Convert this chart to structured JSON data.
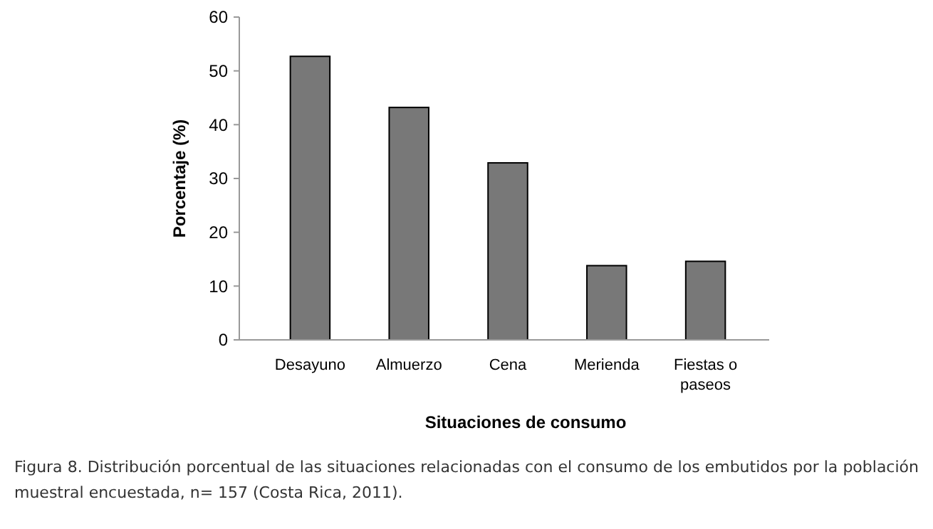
{
  "chart_data": {
    "type": "bar",
    "xlabel": "Situaciones de consumo",
    "ylabel": "Porcentaje (%)",
    "categories": [
      "Desayuno",
      "Almuerzo",
      "Cena",
      "Merienda",
      "Fiestas o paseos"
    ],
    "values": [
      52.7,
      43.2,
      32.9,
      13.8,
      14.6
    ],
    "color": "#787878",
    "ylim": [
      0,
      60
    ],
    "yticks": [
      0,
      10,
      20,
      30,
      40,
      50,
      60
    ],
    "grid": false,
    "annotations": [
      "Figura 8. Distribución porcentual de las situaciones relacionadas con el consumo de los embutidos por la población muestral encuestada, n= 157 (Costa Rica, 2011)."
    ]
  }
}
